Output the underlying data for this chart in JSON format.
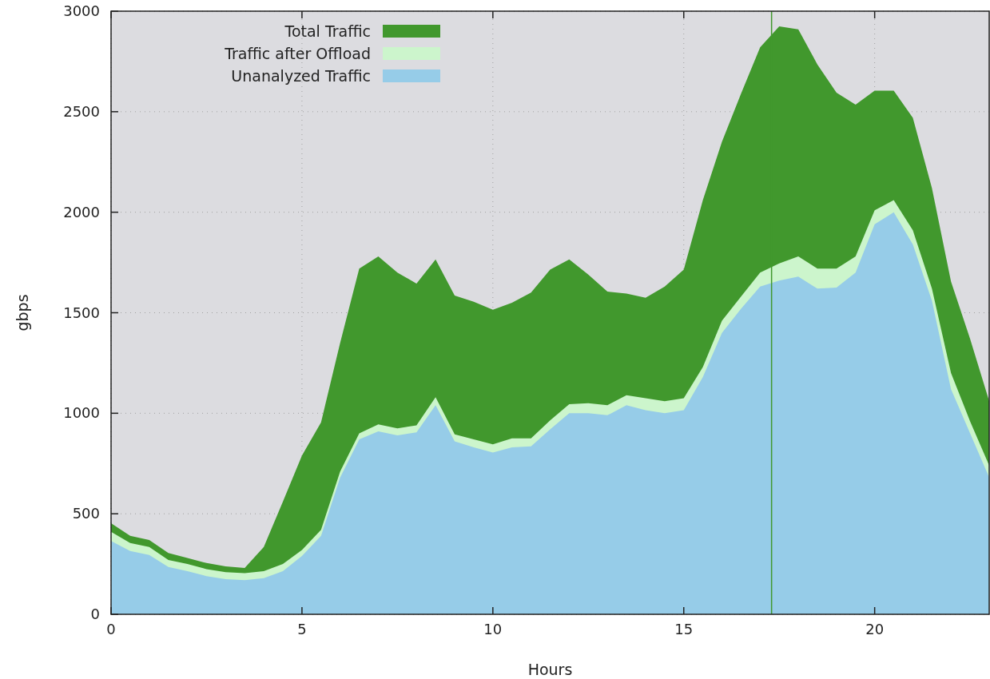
{
  "chart_data": {
    "type": "area",
    "xlabel": "Hours",
    "ylabel": "gbps",
    "x": [
      0,
      0.5,
      1,
      1.5,
      2,
      2.5,
      3,
      3.5,
      4,
      4.5,
      5,
      5.5,
      6,
      6.5,
      7,
      7.5,
      8,
      8.5,
      9,
      9.5,
      10,
      10.5,
      11,
      11.5,
      12,
      12.5,
      13,
      13.5,
      14,
      14.5,
      15,
      15.5,
      16,
      16.5,
      17,
      17.5,
      18,
      18.5,
      19,
      19.5,
      20,
      20.5,
      21,
      21.5,
      22,
      22.5,
      23
    ],
    "series": [
      {
        "name": "Total Traffic",
        "color": "#41982d",
        "values": [
          453,
          390,
          370,
          305,
          280,
          255,
          238,
          230,
          335,
          560,
          790,
          955,
          1350,
          1720,
          1780,
          1700,
          1645,
          1765,
          1585,
          1555,
          1515,
          1550,
          1600,
          1715,
          1765,
          1690,
          1605,
          1595,
          1575,
          1630,
          1715,
          2060,
          2350,
          2590,
          2820,
          2925,
          2910,
          2735,
          2595,
          2535,
          2605,
          2605,
          2470,
          2120,
          1655,
          1370,
          1060
        ]
      },
      {
        "name": "Traffic after Offload",
        "color": "#ccf5cc",
        "values": [
          410,
          355,
          335,
          270,
          250,
          225,
          210,
          205,
          215,
          250,
          320,
          420,
          710,
          900,
          945,
          925,
          940,
          1080,
          895,
          870,
          845,
          875,
          875,
          965,
          1045,
          1050,
          1040,
          1090,
          1075,
          1060,
          1075,
          1230,
          1460,
          1580,
          1700,
          1745,
          1780,
          1720,
          1720,
          1780,
          2010,
          2060,
          1910,
          1620,
          1200,
          960,
          740
        ]
      },
      {
        "name": "Unanalyzed Traffic",
        "color": "#96cce8",
        "values": [
          365,
          315,
          295,
          235,
          215,
          190,
          175,
          170,
          180,
          215,
          290,
          390,
          680,
          870,
          910,
          890,
          905,
          1040,
          860,
          830,
          805,
          830,
          835,
          920,
          1000,
          1000,
          990,
          1040,
          1015,
          1000,
          1015,
          1180,
          1400,
          1520,
          1630,
          1660,
          1680,
          1620,
          1625,
          1700,
          1940,
          2000,
          1840,
          1560,
          1120,
          900,
          680
        ]
      }
    ],
    "xlim": [
      0,
      23
    ],
    "xticks": [
      0,
      5,
      10,
      15,
      20
    ],
    "ylim": [
      0,
      3000
    ],
    "yticks": [
      0,
      500,
      1000,
      1500,
      2000,
      2500,
      3000
    ],
    "grid": true,
    "legend": "top left",
    "ref_lines": [
      {
        "axis": "x",
        "value": 17.3,
        "color": "#41982d"
      }
    ]
  }
}
